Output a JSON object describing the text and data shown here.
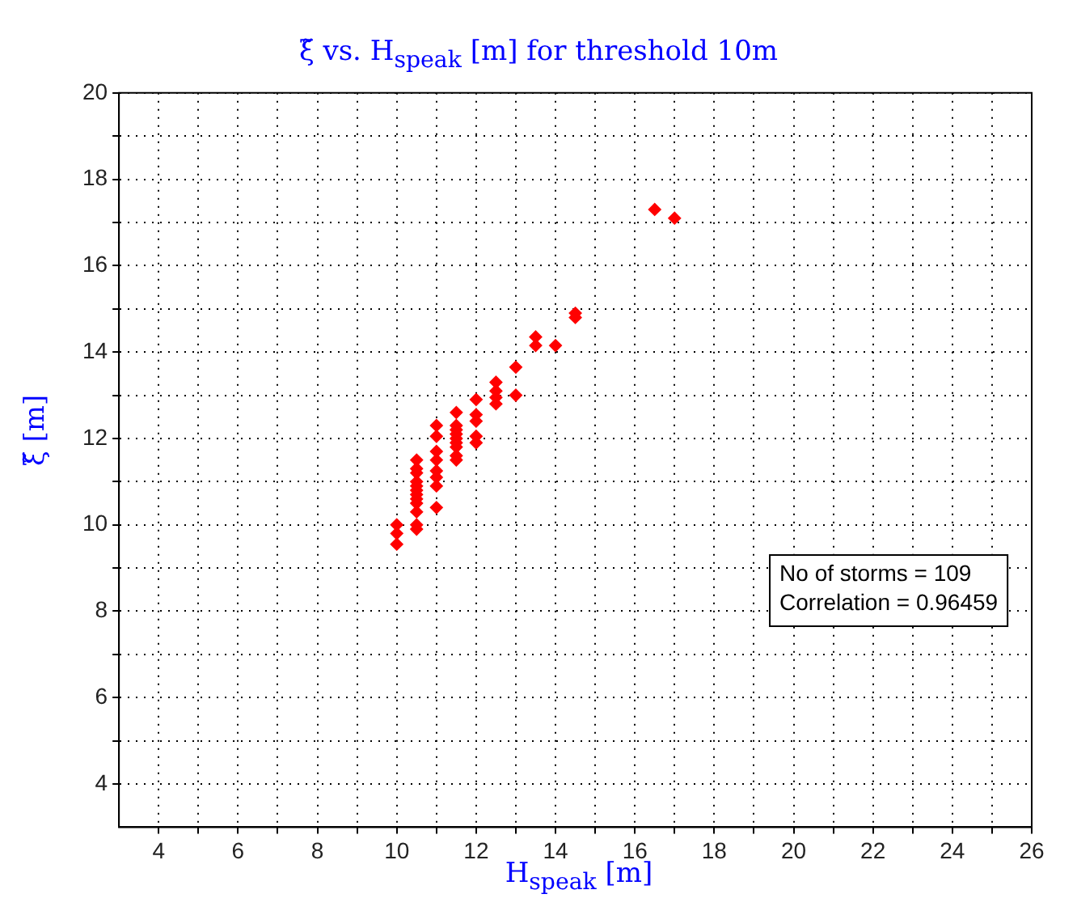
{
  "chart_data": {
    "type": "scatter",
    "title": "ξ̃ vs. H$_{s}$$_{peak}$ [m] for threshold 10m",
    "xlabel": "H$_{s}$$_{peak}$ [m]",
    "ylabel": "ξ̃ [m]",
    "series": [
      {
        "color": "#ff0000",
        "x": [
          10,
          10,
          10,
          10.5,
          10.5,
          10.5,
          10.5,
          10.5,
          10.5,
          10.5,
          10.5,
          10.5,
          10.5,
          10.5,
          10.5,
          11,
          11,
          11,
          11,
          11,
          11,
          11,
          11,
          11.5,
          11.5,
          11.5,
          11.5,
          11.5,
          11.5,
          11.5,
          11.5,
          11.5,
          12,
          12,
          12,
          12,
          12,
          12.5,
          12.5,
          12.5,
          12.5,
          13,
          13,
          13.5,
          13.5,
          14,
          14.5,
          14.5,
          16.5,
          17
        ],
        "values": [
          10,
          9.8,
          9.55,
          11.5,
          11.3,
          11.2,
          11,
          10.9,
          10.8,
          10.7,
          10.6,
          10.5,
          10.3,
          10,
          9.9,
          12.3,
          12.05,
          11.7,
          11.5,
          11.25,
          11.1,
          10.9,
          10.4,
          12.6,
          12.3,
          12.2,
          12.1,
          12,
          11.9,
          11.8,
          11.6,
          11.5,
          12.9,
          12.55,
          12.4,
          12.05,
          11.9,
          13.3,
          13.1,
          12.95,
          12.8,
          13.65,
          13,
          14.35,
          14.15,
          14.15,
          14.9,
          14.8,
          17.3,
          17.1
        ]
      }
    ],
    "marker": "diamond",
    "grid": true,
    "xlim": [
      3,
      26
    ],
    "xticks": [
      4,
      {
        "value": 5,
        "label": null
      },
      6,
      {
        "value": 7,
        "label": null
      },
      8,
      {
        "value": 9,
        "label": null
      },
      10,
      {
        "value": 11,
        "label": null
      },
      12,
      {
        "value": 13,
        "label": null
      },
      14,
      {
        "value": 15,
        "label": null
      },
      16,
      {
        "value": 17,
        "label": null
      },
      18,
      {
        "value": 19,
        "label": null
      },
      20,
      {
        "value": 21,
        "label": null
      },
      22,
      {
        "value": 23,
        "label": null
      },
      24,
      {
        "value": 25,
        "label": null
      },
      26
    ],
    "ylim": [
      3,
      20
    ],
    "yticks": [
      4,
      {
        "value": 5,
        "label": null
      },
      6,
      {
        "value": 7,
        "label": null
      },
      8,
      {
        "value": 9,
        "label": null
      },
      10,
      {
        "value": 11,
        "label": null
      },
      12,
      {
        "value": 13,
        "label": null
      },
      14,
      {
        "value": 15,
        "label": null
      },
      16,
      {
        "value": 17,
        "label": null
      },
      18,
      {
        "value": 19,
        "label": null
      },
      20
    ],
    "annotations": [
      "No of storms = 109",
      "Correlation = 0.96459"
    ]
  }
}
